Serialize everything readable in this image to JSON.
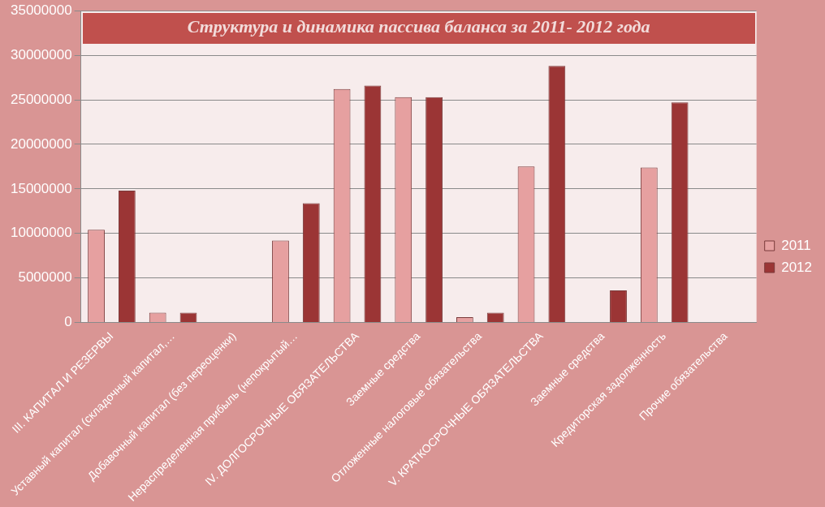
{
  "chart_data": {
    "type": "bar",
    "title": "Структура и динамика пассива баланса за 2011- 2012 года",
    "categories": [
      "III. КАПИТАЛ И РЕЗЕРВЫ",
      "Уставный капитал (складочный капитал,…",
      "Добавочный капитал (без переоценки)",
      "Нераспределенная прибыль (непокрытый…",
      "IV. ДОЛГОСРОЧНЫЕ ОБЯЗАТЕЛЬСТВА",
      "Заемные средства",
      "Отложенные налоговые обязательства",
      "V. КРАТКОСРОЧНЫЕ ОБЯЗАТЕЛЬСТВА",
      "Заемные средства",
      "Кредиторская задолженность",
      "Прочие обязательства"
    ],
    "series": [
      {
        "name": "2011",
        "color": "#e6a0a0",
        "values": [
          10400000,
          1100000,
          0,
          9200000,
          26200000,
          25300000,
          600000,
          17500000,
          0,
          17400000,
          0
        ]
      },
      {
        "name": "2012",
        "color": "#9b3535",
        "values": [
          14800000,
          1100000,
          0,
          13400000,
          26600000,
          25300000,
          1100000,
          28800000,
          3600000,
          24700000,
          0
        ]
      }
    ],
    "ylim": [
      0,
      35000000
    ],
    "yticks": [
      0,
      5000000,
      10000000,
      15000000,
      20000000,
      25000000,
      30000000,
      35000000
    ],
    "grid": "y",
    "legend": "right"
  }
}
